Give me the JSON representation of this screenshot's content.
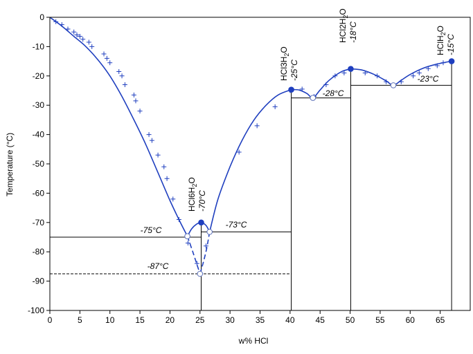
{
  "chart_data": {
    "type": "line",
    "xlabel": "w% HCl",
    "ylabel": "Temperature (°C)",
    "xlim": [
      0,
      70
    ],
    "ylim": [
      -100,
      0
    ],
    "xticks": [
      0,
      5,
      10,
      15,
      20,
      25,
      30,
      35,
      40,
      45,
      50,
      55,
      60,
      65
    ],
    "yticks": [
      0,
      -10,
      -20,
      -30,
      -40,
      -50,
      -60,
      -70,
      -80,
      -90,
      -100
    ],
    "grid": false,
    "colors": {
      "curve": "#1f3fbf",
      "markers": "#1f3fbf",
      "frame": "#000000"
    },
    "series": [
      {
        "style": "solid",
        "x": [
          0,
          2,
          4,
          6,
          8,
          10,
          12,
          14,
          16,
          18,
          20,
          21.5,
          22.9
        ],
        "y": [
          0,
          -3,
          -6.5,
          -10,
          -14.5,
          -20,
          -27,
          -35,
          -43.5,
          -53,
          -62.5,
          -69,
          -74.7
        ]
      },
      {
        "style": "dashed",
        "x": [
          22.9,
          23.8,
          24.6,
          25.0
        ],
        "y": [
          -74.7,
          -80,
          -85,
          -87.5
        ]
      },
      {
        "style": "dashed",
        "x": [
          25.0,
          25.5,
          26.1,
          26.6
        ],
        "y": [
          -87.5,
          -84,
          -79,
          -73.2
        ]
      },
      {
        "style": "solid",
        "x": [
          22.9,
          23.6,
          24.4,
          25.2,
          26.0,
          26.6
        ],
        "y": [
          -74.7,
          -72.2,
          -70.6,
          -70.0,
          -71.0,
          -73.2
        ]
      },
      {
        "style": "solid",
        "x": [
          26.6,
          28,
          30,
          32,
          34,
          36,
          38,
          40.2
        ],
        "y": [
          -73.2,
          -62,
          -51,
          -42,
          -35,
          -30,
          -26.5,
          -24.7
        ]
      },
      {
        "style": "solid",
        "x": [
          40.2,
          41.5,
          42.8,
          43.8,
          45,
          46.5,
          48.5,
          50.1
        ],
        "y": [
          -24.7,
          -24.8,
          -26,
          -27.5,
          -24.8,
          -21.5,
          -18.6,
          -17.6
        ]
      },
      {
        "style": "solid",
        "x": [
          50.1,
          52,
          54,
          56,
          57.2,
          58.5,
          60,
          62,
          64,
          66,
          66.9
        ],
        "y": [
          -17.6,
          -18,
          -19.5,
          -21.7,
          -23.2,
          -21.5,
          -19.5,
          -17.5,
          -16.2,
          -15.3,
          -15.0
        ]
      }
    ],
    "measured_points": {
      "x": [
        1,
        2,
        3,
        4,
        4.5,
        5,
        5.5,
        6.5,
        7,
        9,
        9.5,
        10,
        11.5,
        12,
        12.5,
        14,
        14.3,
        15,
        16.5,
        17,
        18,
        19,
        19.5,
        20.5,
        21.5,
        23,
        24.5,
        26,
        31.5,
        34.5,
        37.5,
        40,
        42,
        44,
        46,
        47.5,
        49,
        52.5,
        54.5,
        56,
        58.5,
        60.5,
        61.5,
        63,
        64.5,
        65.5
      ],
      "y": [
        -1.5,
        -2.5,
        -4,
        -5,
        -6,
        -6.5,
        -7.5,
        -8.5,
        -10,
        -12.5,
        -14,
        -15.5,
        -18.5,
        -20,
        -23,
        -26.5,
        -28.5,
        -32,
        -40,
        -42,
        -47,
        -51,
        -55,
        -62,
        -69,
        -77,
        -84,
        -78,
        -46,
        -37,
        -30.5,
        -25,
        -24.5,
        -27,
        -23,
        -20,
        -19,
        -19,
        -20,
        -22,
        -22,
        -20,
        -19,
        -17.5,
        -16.5,
        -15.5
      ]
    },
    "special_points": {
      "filled": [
        {
          "x": 25.2,
          "y": -70.0
        },
        {
          "x": 40.2,
          "y": -24.7
        },
        {
          "x": 50.1,
          "y": -17.6
        },
        {
          "x": 66.9,
          "y": -15.0
        }
      ],
      "open": [
        {
          "x": 22.9,
          "y": -74.7
        },
        {
          "x": 26.6,
          "y": -73.2
        },
        {
          "x": 25.0,
          "y": -87.5
        },
        {
          "x": 43.8,
          "y": -27.5
        },
        {
          "x": 57.2,
          "y": -23.2
        }
      ]
    },
    "reference_lines": {
      "horizontal": [
        {
          "y": -75,
          "x0": 0,
          "x1": 25.2,
          "style": "solid"
        },
        {
          "y": -73.2,
          "x0": 25.2,
          "x1": 40.2,
          "style": "solid"
        },
        {
          "y": -87.5,
          "x0": 0,
          "x1": 40.2,
          "style": "dashed"
        },
        {
          "y": -27.5,
          "x0": 40.2,
          "x1": 50.1,
          "style": "solid"
        },
        {
          "y": -23.2,
          "x0": 50.1,
          "x1": 66.9,
          "style": "solid"
        }
      ],
      "vertical": [
        {
          "x": 25.2,
          "y0": -100,
          "y1": -70
        },
        {
          "x": 40.2,
          "y0": -100,
          "y1": -24.7
        },
        {
          "x": 50.1,
          "y0": -100,
          "y1": -17.6
        },
        {
          "x": 66.9,
          "y0": -100,
          "y1": -15.0
        }
      ]
    },
    "annotations": {
      "eutectic_minus75": {
        "text": "-75°C"
      },
      "eutectic_minus73": {
        "text": "-73°C"
      },
      "eutectic_minus87": {
        "text": "-87°C"
      },
      "eutectic_minus28": {
        "text": "-28°C"
      },
      "eutectic_minus23": {
        "text": "-23°C"
      },
      "hydrate_6": {
        "formula": "HCl6H",
        "sub": "2",
        "tail": "O",
        "temp": "-70°C"
      },
      "hydrate_3": {
        "formula": "HCl3H",
        "sub": "2",
        "tail": "O",
        "temp": "-25°C"
      },
      "hydrate_2": {
        "formula": "HCl2H",
        "sub": "2",
        "tail": "O",
        "temp": "-18°C"
      },
      "hydrate_1": {
        "formula": "HClH",
        "sub": "2",
        "tail": "O",
        "temp": "-15°C"
      }
    }
  }
}
